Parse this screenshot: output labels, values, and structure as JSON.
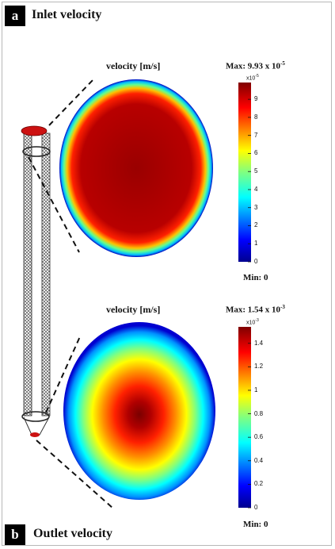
{
  "panel_a": {
    "letter": "a",
    "title": "Inlet velocity",
    "plot_title": "velocity [m/s]",
    "max_prefix": "Max: 9.93 x 10",
    "max_exp": "-5",
    "colorbar_exponent": "x10",
    "colorbar_exponent_power": "-5",
    "ticks": [
      "9",
      "8",
      "7",
      "6",
      "5",
      "4",
      "3",
      "2",
      "1",
      "0"
    ],
    "min_label": "Min: 0"
  },
  "panel_b": {
    "letter": "b",
    "title": "Outlet velocity",
    "plot_title": "velocity [m/s]",
    "max_prefix": "Max: 1.54 x 10",
    "max_exp": "-3",
    "colorbar_exponent": "x10",
    "colorbar_exponent_power": "-3",
    "ticks": [
      "1.4",
      "1.2",
      "1",
      "0.8",
      "0.6",
      "0.4",
      "0.2",
      "0"
    ],
    "min_label": "Min: 0"
  },
  "colors": {
    "inlet_cap": "#cc1111",
    "outlet_cap": "#cc1111",
    "colormap": [
      "#00008f",
      "#0000ff",
      "#00a0ff",
      "#00ffff",
      "#80ff80",
      "#ffff00",
      "#ff8000",
      "#ff0000",
      "#800000"
    ]
  }
}
